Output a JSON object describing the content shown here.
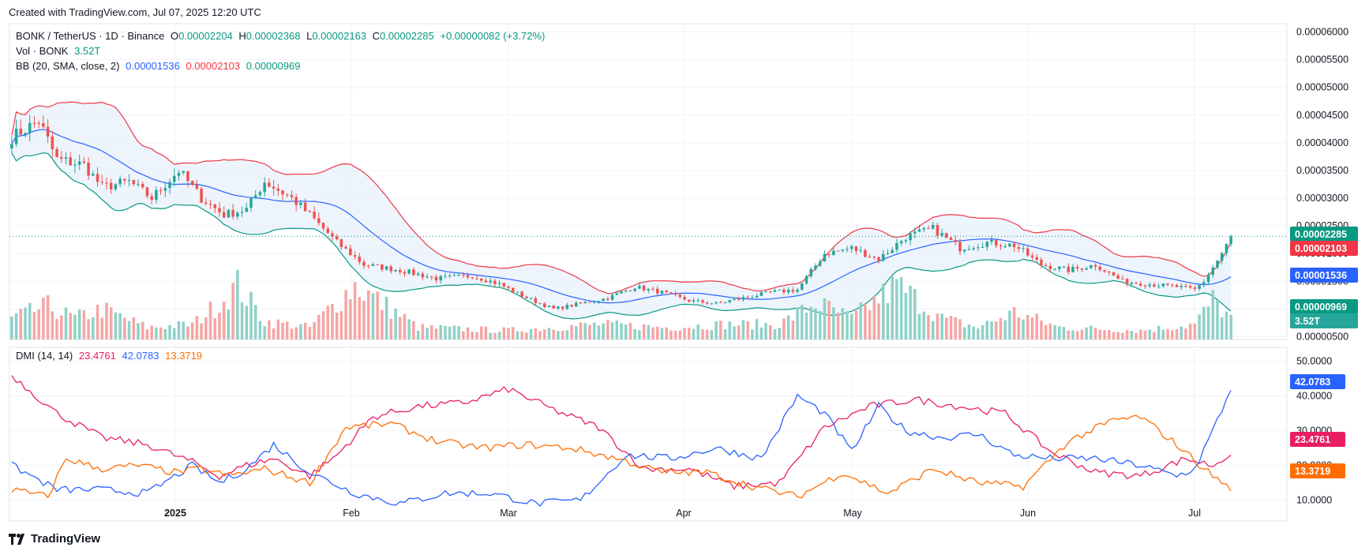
{
  "header": {
    "created_text": "Created with TradingView.com, Jul 07, 2025 12:20 UTC"
  },
  "brand": {
    "name": "TradingView"
  },
  "colors": {
    "up": "#26a69a",
    "down": "#ef5350",
    "vol_up": "#8fd1c8",
    "vol_down": "#f5a6a4",
    "bb_basis": "#2962ff",
    "bb_upper": "#f23645",
    "bb_lower": "#089981",
    "bb_fill": "#e8f1fb",
    "dmi_plus": "#2962ff",
    "dmi_minus": "#e91e63",
    "adx": "#ff6d00",
    "last_price": "#089981"
  },
  "legend": {
    "symbol": "BONK / TetherUS · 1D · Binance",
    "o_label": "O",
    "o_value": "0.00002204",
    "h_label": "H",
    "h_value": "0.00002368",
    "l_label": "L",
    "l_value": "0.00002163",
    "c_label": "C",
    "c_value": "0.00002285",
    "change": "+0.00000082 (+3.72%)",
    "vol_label": "Vol · BONK",
    "vol_value": "3.52T",
    "bb_label": "BB (20, SMA, close, 2)",
    "bb_basis": "0.00001536",
    "bb_upper": "0.00002103",
    "bb_lower": "0.00000969",
    "dmi_label": "DMI (14, 14)",
    "dmi_minus": "23.4761",
    "dmi_plus": "42.0783",
    "adx": "13.3719"
  },
  "chart_data": [
    {
      "type": "candlestick",
      "title": "BONK / TetherUS · 1D · Binance",
      "x_ticks": [
        "2025",
        "Feb",
        "Mar",
        "Apr",
        "May",
        "Jun",
        "Jul"
      ],
      "y_ticks": [
        "0.00006000",
        "0.00005500",
        "0.00005000",
        "0.00004500",
        "0.00004000",
        "0.00003500",
        "0.00003000",
        "0.00002500",
        "0.00002000",
        "0.00001500",
        "0.00001000",
        "0.00000500"
      ],
      "ylim": [
        4.5e-06,
        6.15e-05
      ],
      "price_tags": [
        {
          "value": "0.00002285",
          "color": "#089981"
        },
        {
          "value": "0.00002103",
          "color": "#f23645"
        },
        {
          "value": "0.00001536",
          "color": "#2962ff"
        },
        {
          "value": "0.00000969",
          "color": "#089981"
        },
        {
          "value": "3.52T",
          "color": "#26a69a"
        }
      ],
      "close_anchors_ue6": [
        [
          0,
          41
        ],
        [
          6,
          44
        ],
        [
          10,
          37
        ],
        [
          16,
          36
        ],
        [
          20,
          32
        ],
        [
          26,
          33
        ],
        [
          31,
          30
        ],
        [
          37,
          35
        ],
        [
          42,
          30
        ],
        [
          47,
          27
        ],
        [
          52,
          28
        ],
        [
          56,
          33
        ],
        [
          62,
          30
        ],
        [
          66,
          27
        ],
        [
          72,
          22
        ],
        [
          78,
          18
        ],
        [
          86,
          17
        ],
        [
          94,
          15.5
        ],
        [
          102,
          16
        ],
        [
          108,
          14.5
        ],
        [
          114,
          12
        ],
        [
          120,
          10
        ],
        [
          126,
          11
        ],
        [
          132,
          12
        ],
        [
          138,
          14
        ],
        [
          144,
          13
        ],
        [
          150,
          11.5
        ],
        [
          156,
          11
        ],
        [
          162,
          12
        ],
        [
          168,
          13
        ],
        [
          174,
          13.5
        ],
        [
          180,
          20
        ],
        [
          186,
          21
        ],
        [
          192,
          19
        ],
        [
          198,
          23
        ],
        [
          204,
          24.5
        ],
        [
          210,
          21
        ],
        [
          216,
          22
        ],
        [
          222,
          21.5
        ],
        [
          228,
          18
        ],
        [
          234,
          17
        ],
        [
          240,
          18
        ],
        [
          246,
          15
        ],
        [
          252,
          14.5
        ],
        [
          258,
          14
        ],
        [
          262,
          13.5
        ],
        [
          264,
          15
        ],
        [
          268,
          20
        ],
        [
          270,
          22.9
        ]
      ],
      "volume_anchors": [
        [
          0,
          0.35
        ],
        [
          8,
          0.55
        ],
        [
          14,
          0.35
        ],
        [
          20,
          0.5
        ],
        [
          30,
          0.2
        ],
        [
          40,
          0.25
        ],
        [
          46,
          0.6
        ],
        [
          50,
          0.9
        ],
        [
          56,
          0.3
        ],
        [
          66,
          0.2
        ],
        [
          76,
          0.9
        ],
        [
          90,
          0.2
        ],
        [
          110,
          0.15
        ],
        [
          130,
          0.25
        ],
        [
          145,
          0.2
        ],
        [
          158,
          0.25
        ],
        [
          170,
          0.25
        ],
        [
          178,
          0.6
        ],
        [
          186,
          0.35
        ],
        [
          196,
          0.9
        ],
        [
          206,
          0.35
        ],
        [
          214,
          0.2
        ],
        [
          222,
          0.45
        ],
        [
          232,
          0.2
        ],
        [
          250,
          0.15
        ],
        [
          262,
          0.25
        ],
        [
          266,
          0.65
        ],
        [
          270,
          0.35
        ]
      ]
    },
    {
      "type": "line",
      "title": "DMI (14, 14)",
      "y_ticks": [
        "50.0000",
        "40.0000",
        "30.0000",
        "20.0000",
        "10.0000"
      ],
      "ylim": [
        4,
        54
      ],
      "series": [
        {
          "name": "",
          "color": "#e91e63",
          "anchors": [
            [
              0,
              46
            ],
            [
              10,
              35
            ],
            [
              20,
              28
            ],
            [
              30,
              26
            ],
            [
              40,
              21
            ],
            [
              46,
              17
            ],
            [
              52,
              20
            ],
            [
              58,
              22
            ],
            [
              66,
              17
            ],
            [
              72,
              23
            ],
            [
              80,
              34
            ],
            [
              90,
              37
            ],
            [
              100,
              38
            ],
            [
              110,
              42
            ],
            [
              120,
              36
            ],
            [
              130,
              31
            ],
            [
              140,
              19
            ],
            [
              150,
              19
            ],
            [
              160,
              14
            ],
            [
              170,
              15
            ],
            [
              180,
              31
            ],
            [
              190,
              37
            ],
            [
              200,
              39
            ],
            [
              210,
              37
            ],
            [
              220,
              35
            ],
            [
              230,
              24
            ],
            [
              240,
              18
            ],
            [
              250,
              17
            ],
            [
              260,
              22
            ],
            [
              266,
              20
            ],
            [
              270,
              23.5
            ]
          ]
        },
        {
          "name": "",
          "color": "#2962ff",
          "anchors": [
            [
              0,
              20
            ],
            [
              10,
              13
            ],
            [
              20,
              13
            ],
            [
              30,
              12
            ],
            [
              40,
              20
            ],
            [
              46,
              15
            ],
            [
              52,
              19
            ],
            [
              58,
              26
            ],
            [
              66,
              18
            ],
            [
              76,
              12
            ],
            [
              86,
              9
            ],
            [
              96,
              12
            ],
            [
              106,
              12
            ],
            [
              116,
              9
            ],
            [
              126,
              10
            ],
            [
              136,
              23
            ],
            [
              146,
              22
            ],
            [
              156,
              25
            ],
            [
              166,
              22
            ],
            [
              174,
              40
            ],
            [
              180,
              35
            ],
            [
              186,
              24
            ],
            [
              192,
              37
            ],
            [
              198,
              30
            ],
            [
              206,
              28
            ],
            [
              214,
              29
            ],
            [
              222,
              23
            ],
            [
              230,
              22
            ],
            [
              240,
              22
            ],
            [
              250,
              20
            ],
            [
              258,
              17
            ],
            [
              262,
              19
            ],
            [
              266,
              30
            ],
            [
              270,
              42
            ]
          ]
        },
        {
          "name": "",
          "color": "#ff6d00",
          "anchors": [
            [
              0,
              13
            ],
            [
              8,
              11
            ],
            [
              12,
              22
            ],
            [
              20,
              19
            ],
            [
              28,
              20
            ],
            [
              36,
              18
            ],
            [
              42,
              19
            ],
            [
              48,
              17
            ],
            [
              56,
              19
            ],
            [
              66,
              15
            ],
            [
              74,
              31
            ],
            [
              84,
              32
            ],
            [
              94,
              27
            ],
            [
              104,
              25
            ],
            [
              114,
              26
            ],
            [
              124,
              25
            ],
            [
              134,
              22
            ],
            [
              144,
              18
            ],
            [
              154,
              18
            ],
            [
              164,
              14
            ],
            [
              174,
              11
            ],
            [
              184,
              18
            ],
            [
              194,
              12
            ],
            [
              204,
              19
            ],
            [
              214,
              15
            ],
            [
              224,
              14
            ],
            [
              234,
              27
            ],
            [
              244,
              33
            ],
            [
              250,
              34
            ],
            [
              258,
              26
            ],
            [
              266,
              17
            ],
            [
              270,
              13.4
            ]
          ]
        }
      ],
      "price_tags": [
        {
          "value": "42.0783",
          "color": "#2962ff"
        },
        {
          "value": "23.4761",
          "color": "#e91e63"
        },
        {
          "value": "13.3719",
          "color": "#ff6d00"
        }
      ]
    }
  ]
}
